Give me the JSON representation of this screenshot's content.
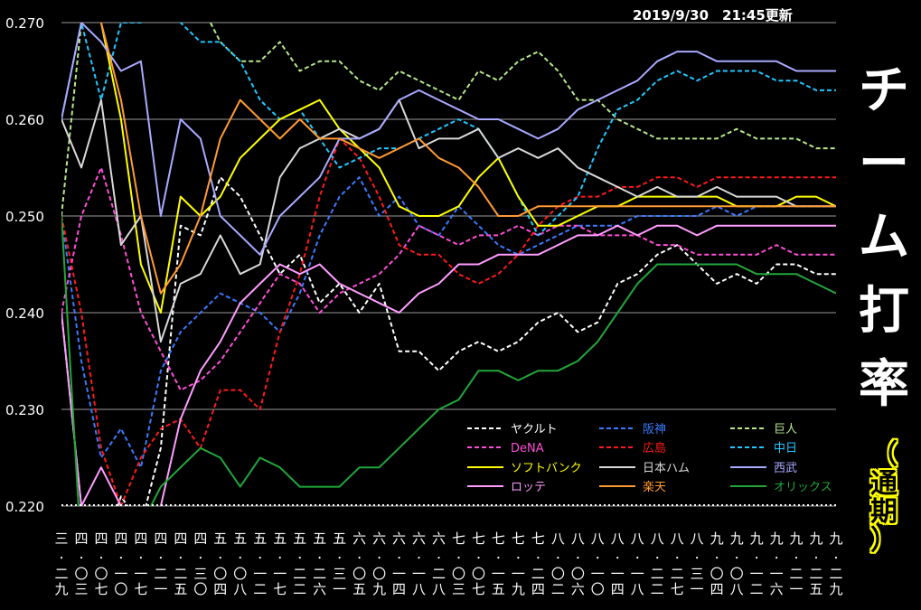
{
  "updated": "2019/9/30　21:45更新",
  "title_chars": [
    "チ",
    "ー",
    "ム",
    "打",
    "率"
  ],
  "subtitle_chars": [
    "（",
    "通",
    "期",
    "）"
  ],
  "chart_data": {
    "type": "line",
    "title": "チーム打率",
    "subtitle": "（通期）",
    "ylim": [
      0.22,
      0.27
    ],
    "yticks": [
      "0.220",
      "0.230",
      "0.240",
      "0.250",
      "0.260",
      "0.270"
    ],
    "grid": true,
    "legend_position": "bottom-right inside plot",
    "x_tick_labels": [
      [
        "三",
        "二",
        "九"
      ],
      [
        "四",
        "〇",
        "三"
      ],
      [
        "四",
        "〇",
        "七"
      ],
      [
        "四",
        "一",
        "〇"
      ],
      [
        "四",
        "一",
        "七"
      ],
      [
        "四",
        "二",
        "一"
      ],
      [
        "四",
        "二",
        "五"
      ],
      [
        "四",
        "三",
        "〇"
      ],
      [
        "五",
        "〇",
        "四"
      ],
      [
        "五",
        "〇",
        "八"
      ],
      [
        "五",
        "一",
        "二"
      ],
      [
        "五",
        "一",
        "七"
      ],
      [
        "五",
        "二",
        "二"
      ],
      [
        "五",
        "二",
        "六"
      ],
      [
        "五",
        "三",
        "一"
      ],
      [
        "六",
        "〇",
        "五"
      ],
      [
        "六",
        "〇",
        "九"
      ],
      [
        "六",
        "一",
        "四"
      ],
      [
        "六",
        "一",
        "八"
      ],
      [
        "六",
        "二",
        "八"
      ],
      [
        "七",
        "〇",
        "三"
      ],
      [
        "七",
        "〇",
        "七"
      ],
      [
        "七",
        "一",
        "五"
      ],
      [
        "七",
        "一",
        "九"
      ],
      [
        "七",
        "二",
        "四"
      ],
      [
        "八",
        "〇",
        "二"
      ],
      [
        "八",
        "〇",
        "六"
      ],
      [
        "八",
        "一",
        "〇"
      ],
      [
        "八",
        "一",
        "四"
      ],
      [
        "八",
        "一",
        "八"
      ],
      [
        "八",
        "二",
        "二"
      ],
      [
        "八",
        "二",
        "七"
      ],
      [
        "八",
        "三",
        "一"
      ],
      [
        "九",
        "〇",
        "四"
      ],
      [
        "九",
        "〇",
        "八"
      ],
      [
        "九",
        "一",
        "二"
      ],
      [
        "九",
        "一",
        "六"
      ],
      [
        "九",
        "二",
        "一"
      ],
      [
        "九",
        "二",
        "五"
      ],
      [
        "九",
        "二",
        "九"
      ]
    ],
    "series": [
      {
        "name": "ヤクルト",
        "color": "#ffffff",
        "dash": true,
        "values": [
          0.24,
          0.22,
          0.215,
          0.221,
          0.218,
          0.226,
          0.249,
          0.248,
          0.254,
          0.252,
          0.248,
          0.244,
          0.246,
          0.241,
          0.243,
          0.24,
          0.243,
          0.236,
          0.236,
          0.234,
          0.236,
          0.237,
          0.236,
          0.237,
          0.239,
          0.24,
          0.238,
          0.239,
          0.243,
          0.244,
          0.246,
          0.247,
          0.245,
          0.243,
          0.244,
          0.243,
          0.245,
          0.245,
          0.244,
          0.244
        ]
      },
      {
        "name": "阪神",
        "color": "#3a7bff",
        "dash": true,
        "values": [
          0.25,
          0.235,
          0.225,
          0.228,
          0.224,
          0.234,
          0.238,
          0.24,
          0.242,
          0.241,
          0.24,
          0.238,
          0.242,
          0.248,
          0.252,
          0.254,
          0.25,
          0.252,
          0.249,
          0.248,
          0.251,
          0.249,
          0.247,
          0.246,
          0.247,
          0.248,
          0.249,
          0.249,
          0.249,
          0.25,
          0.25,
          0.25,
          0.25,
          0.251,
          0.25,
          0.251,
          0.251,
          0.251,
          0.251,
          0.251
        ]
      },
      {
        "name": "巨人",
        "color": "#b7e88a",
        "dash": true,
        "values": [
          0.25,
          0.27,
          0.275,
          0.275,
          0.275,
          0.275,
          0.275,
          0.272,
          0.268,
          0.266,
          0.266,
          0.268,
          0.265,
          0.266,
          0.266,
          0.264,
          0.263,
          0.265,
          0.264,
          0.263,
          0.262,
          0.265,
          0.264,
          0.266,
          0.267,
          0.265,
          0.262,
          0.262,
          0.26,
          0.259,
          0.258,
          0.258,
          0.258,
          0.258,
          0.259,
          0.258,
          0.258,
          0.258,
          0.257,
          0.257
        ]
      },
      {
        "name": "DeNA",
        "color": "#ff4fd8",
        "dash": true,
        "values": [
          0.24,
          0.25,
          0.255,
          0.248,
          0.24,
          0.236,
          0.232,
          0.233,
          0.235,
          0.238,
          0.241,
          0.244,
          0.243,
          0.24,
          0.242,
          0.243,
          0.244,
          0.246,
          0.249,
          0.248,
          0.247,
          0.248,
          0.248,
          0.249,
          0.248,
          0.249,
          0.249,
          0.248,
          0.248,
          0.248,
          0.247,
          0.247,
          0.246,
          0.246,
          0.246,
          0.246,
          0.247,
          0.246,
          0.246,
          0.246
        ]
      },
      {
        "name": "広島",
        "color": "#ff1a1a",
        "dash": true,
        "values": [
          0.25,
          0.24,
          0.226,
          0.22,
          0.225,
          0.228,
          0.229,
          0.226,
          0.232,
          0.232,
          0.23,
          0.238,
          0.244,
          0.252,
          0.258,
          0.256,
          0.252,
          0.247,
          0.246,
          0.246,
          0.244,
          0.243,
          0.244,
          0.246,
          0.249,
          0.251,
          0.252,
          0.252,
          0.253,
          0.253,
          0.254,
          0.254,
          0.253,
          0.254,
          0.254,
          0.254,
          0.254,
          0.254,
          0.254,
          0.254
        ]
      },
      {
        "name": "中日",
        "color": "#21c8ff",
        "dash": true,
        "values": [
          0.26,
          0.27,
          0.262,
          0.27,
          0.27,
          0.272,
          0.27,
          0.268,
          0.268,
          0.266,
          0.262,
          0.26,
          0.261,
          0.258,
          0.255,
          0.256,
          0.257,
          0.257,
          0.258,
          0.259,
          0.26,
          0.259,
          0.256,
          0.252,
          0.248,
          0.25,
          0.252,
          0.257,
          0.261,
          0.262,
          0.264,
          0.265,
          0.264,
          0.265,
          0.265,
          0.265,
          0.264,
          0.264,
          0.263,
          0.263
        ]
      },
      {
        "name": "ソフトバンク",
        "color": "#ffff00",
        "dash": false,
        "values": [
          0.27,
          0.275,
          0.27,
          0.26,
          0.245,
          0.24,
          0.252,
          0.25,
          0.252,
          0.256,
          0.258,
          0.26,
          0.261,
          0.262,
          0.259,
          0.257,
          0.255,
          0.251,
          0.25,
          0.25,
          0.251,
          0.254,
          0.256,
          0.252,
          0.249,
          0.249,
          0.25,
          0.251,
          0.251,
          0.252,
          0.252,
          0.252,
          0.252,
          0.252,
          0.251,
          0.251,
          0.251,
          0.252,
          0.252,
          0.251
        ]
      },
      {
        "name": "日本ハム",
        "color": "#d9d9d9",
        "dash": false,
        "values": [
          0.26,
          0.255,
          0.262,
          0.247,
          0.25,
          0.237,
          0.243,
          0.244,
          0.248,
          0.244,
          0.245,
          0.254,
          0.257,
          0.258,
          0.259,
          0.258,
          0.259,
          0.262,
          0.257,
          0.258,
          0.258,
          0.259,
          0.256,
          0.257,
          0.256,
          0.257,
          0.255,
          0.254,
          0.253,
          0.252,
          0.253,
          0.252,
          0.252,
          0.253,
          0.252,
          0.252,
          0.252,
          0.251,
          0.251,
          0.251
        ]
      },
      {
        "name": "西武",
        "color": "#a9a9ff",
        "dash": false,
        "values": [
          0.26,
          0.27,
          0.268,
          0.265,
          0.266,
          0.25,
          0.26,
          0.258,
          0.25,
          0.248,
          0.246,
          0.25,
          0.252,
          0.254,
          0.258,
          0.258,
          0.259,
          0.262,
          0.263,
          0.262,
          0.261,
          0.26,
          0.26,
          0.259,
          0.258,
          0.259,
          0.261,
          0.262,
          0.263,
          0.264,
          0.266,
          0.267,
          0.267,
          0.266,
          0.266,
          0.266,
          0.266,
          0.265,
          0.265,
          0.265
        ]
      },
      {
        "name": "ロッテ",
        "color": "#ff9dff",
        "dash": false,
        "values": [
          0.24,
          0.22,
          0.224,
          0.22,
          0.215,
          0.22,
          0.229,
          0.234,
          0.237,
          0.241,
          0.243,
          0.245,
          0.244,
          0.245,
          0.243,
          0.242,
          0.241,
          0.24,
          0.242,
          0.243,
          0.245,
          0.245,
          0.246,
          0.246,
          0.246,
          0.247,
          0.248,
          0.248,
          0.249,
          0.248,
          0.249,
          0.249,
          0.248,
          0.249,
          0.249,
          0.249,
          0.249,
          0.249,
          0.249,
          0.249
        ]
      },
      {
        "name": "楽天",
        "color": "#ff9a33",
        "dash": false,
        "values": [
          0.27,
          0.275,
          0.27,
          0.262,
          0.25,
          0.242,
          0.245,
          0.25,
          0.258,
          0.262,
          0.26,
          0.258,
          0.26,
          0.258,
          0.258,
          0.257,
          0.256,
          0.257,
          0.258,
          0.256,
          0.255,
          0.253,
          0.25,
          0.25,
          0.251,
          0.251,
          0.251,
          0.251,
          0.251,
          0.251,
          0.251,
          0.251,
          0.251,
          0.251,
          0.251,
          0.251,
          0.251,
          0.251,
          0.251,
          0.251
        ]
      },
      {
        "name": "オリックス",
        "color": "#22a63a",
        "dash": false,
        "values": [
          0.25,
          0.215,
          0.214,
          0.216,
          0.218,
          0.222,
          0.224,
          0.226,
          0.225,
          0.222,
          0.225,
          0.224,
          0.222,
          0.222,
          0.222,
          0.224,
          0.224,
          0.226,
          0.228,
          0.23,
          0.231,
          0.234,
          0.234,
          0.233,
          0.234,
          0.234,
          0.235,
          0.237,
          0.24,
          0.243,
          0.245,
          0.245,
          0.245,
          0.245,
          0.245,
          0.244,
          0.244,
          0.244,
          0.243,
          0.242
        ]
      }
    ]
  }
}
